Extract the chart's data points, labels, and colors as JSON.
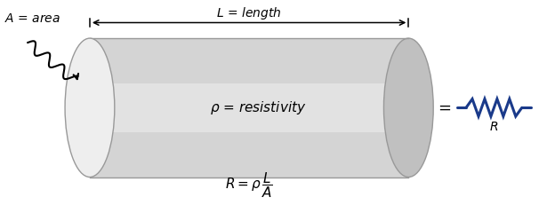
{
  "bg_color": "#ffffff",
  "cylinder_body_color": "#d4d4d4",
  "cylinder_highlight_color": "#eeeeee",
  "cylinder_shadow_color": "#c0c0c0",
  "cylinder_edge_color": "#999999",
  "resistor_color": "#1a3a8a",
  "text_color": "#000000",
  "arrow_color": "#000000",
  "fig_width": 6.24,
  "fig_height": 2.4,
  "dpi": 100
}
